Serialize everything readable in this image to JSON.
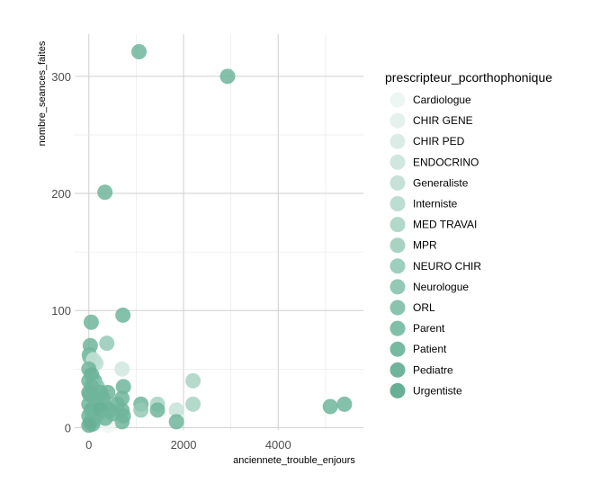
{
  "chart_data": {
    "type": "scatter",
    "xlabel": "anciennete_trouble_enjours",
    "ylabel": "nombre_seances_faites",
    "xlim": [
      -300,
      5800
    ],
    "ylim": [
      -2,
      336
    ],
    "x_ticks": [
      0,
      2000,
      4000
    ],
    "y_ticks": [
      0,
      100,
      200,
      300
    ],
    "x_tick_labels": [
      "0",
      "2000",
      "4000"
    ],
    "y_tick_labels": [
      "0",
      "100",
      "200",
      "300"
    ],
    "grid": true,
    "legend_position": "right",
    "legend": {
      "title": "prescripteur_pcorthophonique",
      "entries": [
        {
          "label": "Cardiologue",
          "color": "#eef6f3"
        },
        {
          "label": "CHIR GENE",
          "color": "#e4f1ec"
        },
        {
          "label": "CHIR PED",
          "color": "#daece5"
        },
        {
          "label": "ENDOCRINO",
          "color": "#d0e7df"
        },
        {
          "label": "Generaliste",
          "color": "#c6e2d8"
        },
        {
          "label": "Interniste",
          "color": "#bcddd1"
        },
        {
          "label": "MED TRAVAI",
          "color": "#b2d8ca"
        },
        {
          "label": "MPR",
          "color": "#a8d3c3"
        },
        {
          "label": "NEURO CHIR",
          "color": "#9ecebd"
        },
        {
          "label": "Neurologue",
          "color": "#94c9b6"
        },
        {
          "label": "ORL",
          "color": "#8ac4af"
        },
        {
          "label": "Parent",
          "color": "#80bfa8"
        },
        {
          "label": "Patient",
          "color": "#77baa2"
        },
        {
          "label": "Pediatre",
          "color": "#6fb59b"
        },
        {
          "label": "Urgentiste",
          "color": "#67b095"
        }
      ]
    },
    "points": [
      {
        "x": 1060,
        "y": 321,
        "group": "Pediatre"
      },
      {
        "x": 2930,
        "y": 300,
        "group": "Pediatre"
      },
      {
        "x": 340,
        "y": 201,
        "group": "Pediatre"
      },
      {
        "x": 720,
        "y": 96,
        "group": "Pediatre"
      },
      {
        "x": 50,
        "y": 90,
        "group": "Pediatre"
      },
      {
        "x": 380,
        "y": 72,
        "group": "Neurologue"
      },
      {
        "x": 30,
        "y": 70,
        "group": "Pediatre"
      },
      {
        "x": 10,
        "y": 62,
        "group": "Pediatre"
      },
      {
        "x": 20,
        "y": 60,
        "group": "Parent"
      },
      {
        "x": 100,
        "y": 58,
        "group": "Generaliste"
      },
      {
        "x": 150,
        "y": 55,
        "group": "Interniste"
      },
      {
        "x": 700,
        "y": 50,
        "group": "ENDOCRINO"
      },
      {
        "x": 0,
        "y": 50,
        "group": "Pediatre"
      },
      {
        "x": 60,
        "y": 45,
        "group": "Urgentiste"
      },
      {
        "x": 120,
        "y": 40,
        "group": "Pediatre"
      },
      {
        "x": 2200,
        "y": 40,
        "group": "MPR"
      },
      {
        "x": 0,
        "y": 40,
        "group": "Pediatre"
      },
      {
        "x": 730,
        "y": 35,
        "group": "Pediatre"
      },
      {
        "x": 180,
        "y": 35,
        "group": "ORL"
      },
      {
        "x": 250,
        "y": 30,
        "group": "Pediatre"
      },
      {
        "x": 400,
        "y": 30,
        "group": "Pediatre"
      },
      {
        "x": 0,
        "y": 30,
        "group": "Urgentiste"
      },
      {
        "x": 700,
        "y": 25,
        "group": "Pediatre"
      },
      {
        "x": 1100,
        "y": 20,
        "group": "Pediatre"
      },
      {
        "x": 1450,
        "y": 20,
        "group": "MPR"
      },
      {
        "x": 2200,
        "y": 20,
        "group": "MPR"
      },
      {
        "x": 5100,
        "y": 18,
        "group": "Pediatre"
      },
      {
        "x": 5400,
        "y": 20,
        "group": "Pediatre"
      },
      {
        "x": 1100,
        "y": 15,
        "group": "Neurologue"
      },
      {
        "x": 1450,
        "y": 15,
        "group": "Pediatre"
      },
      {
        "x": 1850,
        "y": 15,
        "group": "Generaliste"
      },
      {
        "x": 200,
        "y": 20,
        "group": "Pediatre"
      },
      {
        "x": 350,
        "y": 18,
        "group": "Patient"
      },
      {
        "x": 450,
        "y": 15,
        "group": "Pediatre"
      },
      {
        "x": 700,
        "y": 15,
        "group": "Pediatre"
      },
      {
        "x": 730,
        "y": 10,
        "group": "Pediatre"
      },
      {
        "x": 0,
        "y": 20,
        "group": "Pediatre"
      },
      {
        "x": 50,
        "y": 15,
        "group": "Urgentiste"
      },
      {
        "x": 100,
        "y": 12,
        "group": "Pediatre"
      },
      {
        "x": 150,
        "y": 10,
        "group": "Pediatre"
      },
      {
        "x": 200,
        "y": 8,
        "group": "Parent"
      },
      {
        "x": 0,
        "y": 10,
        "group": "Pediatre"
      },
      {
        "x": 30,
        "y": 5,
        "group": "Pediatre"
      },
      {
        "x": 80,
        "y": 3,
        "group": "Pediatre"
      },
      {
        "x": 0,
        "y": 2,
        "group": "Urgentiste"
      },
      {
        "x": 700,
        "y": 5,
        "group": "Pediatre"
      },
      {
        "x": 1850,
        "y": 5,
        "group": "Pediatre"
      },
      {
        "x": 400,
        "y": 2,
        "group": "Cardiologue"
      },
      {
        "x": 300,
        "y": 25,
        "group": "Pediatre"
      },
      {
        "x": 120,
        "y": 25,
        "group": "Pediatre"
      },
      {
        "x": 60,
        "y": 35,
        "group": "Pediatre"
      },
      {
        "x": 20,
        "y": 28,
        "group": "Pediatre"
      },
      {
        "x": 250,
        "y": 15,
        "group": "Urgentiste"
      },
      {
        "x": 350,
        "y": 8,
        "group": "Pediatre"
      },
      {
        "x": 500,
        "y": 12,
        "group": "Pediatre"
      },
      {
        "x": 600,
        "y": 20,
        "group": "Pediatre"
      }
    ]
  }
}
